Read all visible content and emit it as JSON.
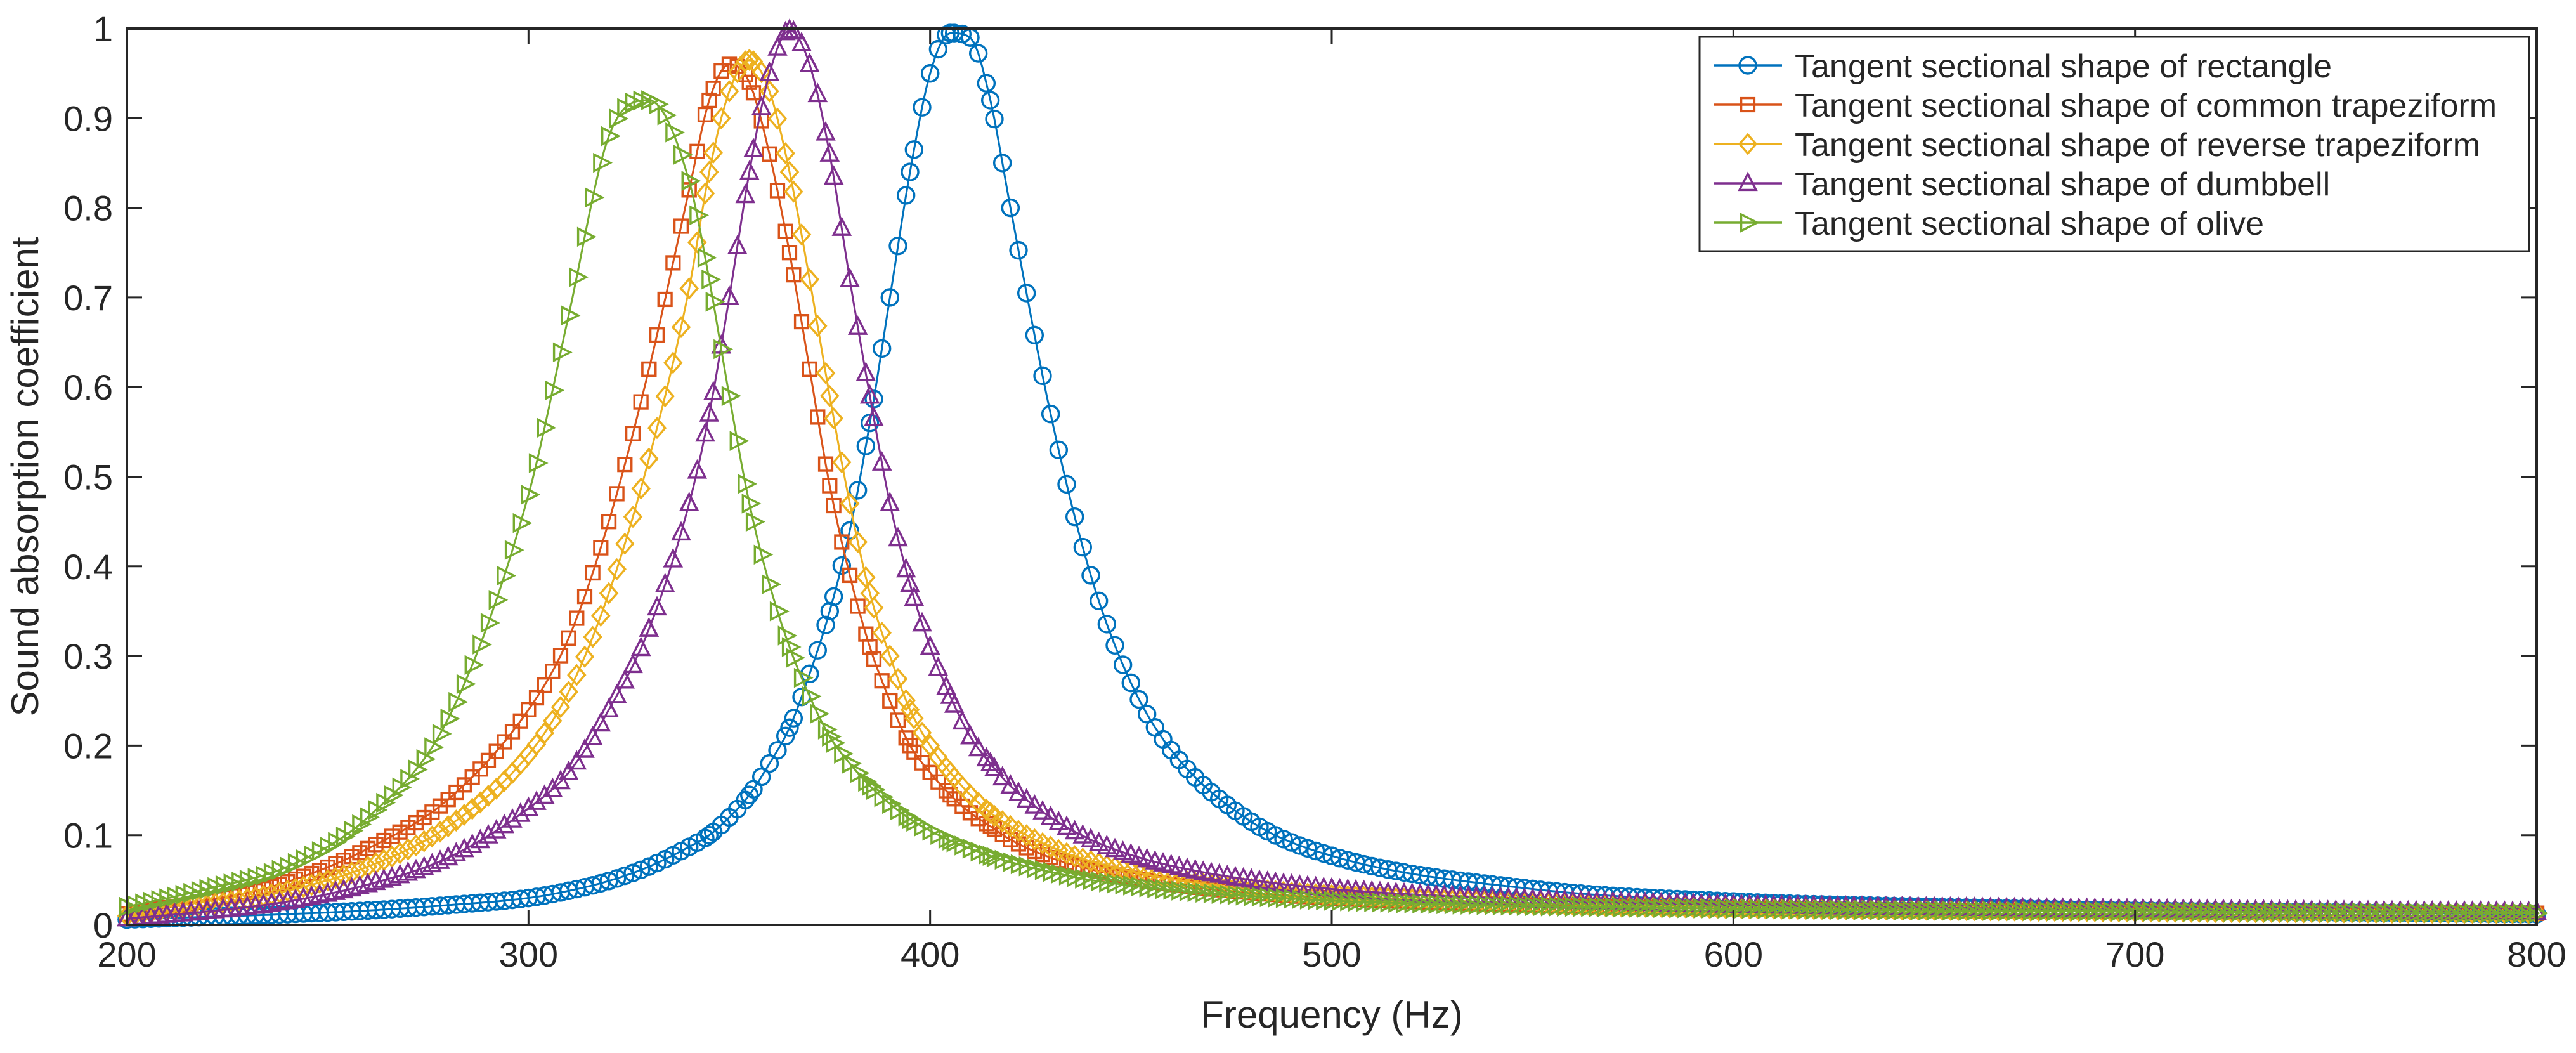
{
  "chart_data": {
    "type": "line",
    "title": "",
    "xlabel": "Frequency (Hz)",
    "ylabel": "Sound absorption coefficient",
    "xlim": [
      200,
      800
    ],
    "ylim": [
      0,
      1
    ],
    "xticks": [
      200,
      300,
      400,
      500,
      600,
      700,
      800
    ],
    "yticks": [
      0,
      0.1,
      0.2,
      0.3,
      0.4,
      0.5,
      0.6,
      0.7,
      0.8,
      0.9,
      1
    ],
    "xtick_labels": [
      "200",
      "300",
      "400",
      "500",
      "600",
      "700",
      "800"
    ],
    "ytick_labels": [
      "0",
      "0.1",
      "0.2",
      "0.3",
      "0.4",
      "0.5",
      "0.6",
      "0.7",
      "0.8",
      "0.9",
      "1"
    ],
    "grid": false,
    "legend_position": "top-right",
    "x": [
      200,
      220,
      240,
      260,
      280,
      300,
      310,
      320,
      330,
      340,
      345,
      350,
      355,
      360,
      365,
      370,
      375,
      380,
      385,
      390,
      395,
      400,
      405,
      410,
      415,
      420,
      430,
      440,
      450,
      460,
      480,
      500,
      550,
      600,
      650,
      700,
      750,
      800
    ],
    "series": [
      {
        "name": "Tangent sectional shape of rectangle",
        "color": "#0072BD",
        "marker": "circle",
        "values": [
          0.006,
          0.009,
          0.012,
          0.016,
          0.022,
          0.03,
          0.038,
          0.049,
          0.065,
          0.087,
          0.1,
          0.12,
          0.145,
          0.18,
          0.22,
          0.28,
          0.35,
          0.44,
          0.56,
          0.7,
          0.84,
          0.95,
          0.995,
          0.99,
          0.92,
          0.8,
          0.57,
          0.39,
          0.27,
          0.195,
          0.115,
          0.077,
          0.04,
          0.026,
          0.02,
          0.016,
          0.014,
          0.012
        ]
      },
      {
        "name": "Tangent sectional shape of common trapeziform",
        "color": "#D95319",
        "marker": "square",
        "values": [
          0.012,
          0.027,
          0.048,
          0.085,
          0.14,
          0.24,
          0.32,
          0.45,
          0.62,
          0.82,
          0.92,
          0.96,
          0.94,
          0.86,
          0.75,
          0.62,
          0.49,
          0.39,
          0.31,
          0.25,
          0.2,
          0.17,
          0.145,
          0.125,
          0.11,
          0.095,
          0.075,
          0.062,
          0.052,
          0.045,
          0.036,
          0.03,
          0.022,
          0.018,
          0.016,
          0.015,
          0.014,
          0.013
        ]
      },
      {
        "name": "Tangent sectional shape of reverse trapeziform",
        "color": "#EDB120",
        "marker": "diamond",
        "values": [
          0.01,
          0.022,
          0.038,
          0.065,
          0.11,
          0.19,
          0.26,
          0.37,
          0.52,
          0.71,
          0.84,
          0.93,
          0.965,
          0.93,
          0.84,
          0.72,
          0.59,
          0.47,
          0.37,
          0.3,
          0.24,
          0.2,
          0.17,
          0.145,
          0.125,
          0.11,
          0.087,
          0.071,
          0.06,
          0.051,
          0.04,
          0.033,
          0.024,
          0.019,
          0.017,
          0.015,
          0.014,
          0.013
        ]
      },
      {
        "name": "Tangent sectional shape of dumbbell",
        "color": "#7E2F8E",
        "marker": "triangle-up",
        "values": [
          0.007,
          0.015,
          0.026,
          0.045,
          0.075,
          0.13,
          0.17,
          0.24,
          0.33,
          0.47,
          0.57,
          0.7,
          0.84,
          0.95,
          0.998,
          0.96,
          0.86,
          0.72,
          0.59,
          0.47,
          0.38,
          0.31,
          0.255,
          0.21,
          0.18,
          0.155,
          0.12,
          0.095,
          0.078,
          0.066,
          0.05,
          0.04,
          0.028,
          0.022,
          0.019,
          0.017,
          0.015,
          0.014
        ]
      },
      {
        "name": "Tangent sectional shape of olive",
        "color": "#77AC30",
        "marker": "triangle-right",
        "values": [
          0.02,
          0.04,
          0.065,
          0.12,
          0.23,
          0.48,
          0.68,
          0.88,
          0.92,
          0.83,
          0.72,
          0.59,
          0.47,
          0.38,
          0.31,
          0.255,
          0.21,
          0.18,
          0.155,
          0.135,
          0.118,
          0.105,
          0.094,
          0.085,
          0.077,
          0.07,
          0.059,
          0.05,
          0.044,
          0.039,
          0.032,
          0.027,
          0.021,
          0.018,
          0.016,
          0.015,
          0.014,
          0.013
        ]
      }
    ]
  }
}
